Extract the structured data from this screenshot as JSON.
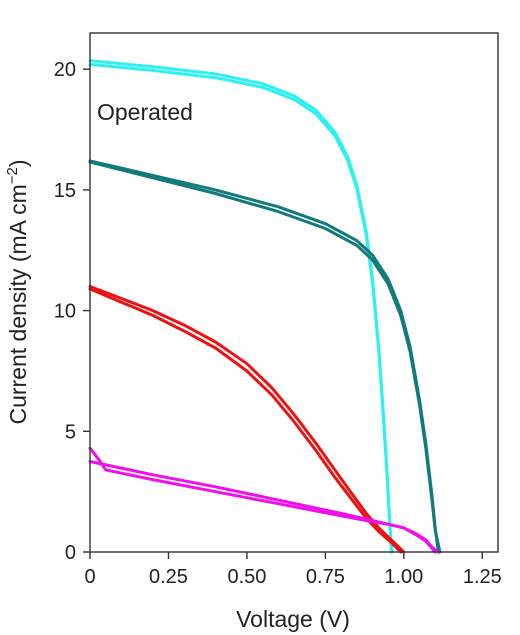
{
  "chart_data": {
    "type": "line",
    "xlabel": "Voltage (V)",
    "ylabel_main": "Current density (mA cm",
    "ylabel_exp": "−2",
    "ylabel_close": ")",
    "annotation": "Operated",
    "xlim": [
      0,
      1.3
    ],
    "ylim": [
      0,
      21.5
    ],
    "xticks": [
      0,
      0.25,
      0.5,
      0.75,
      1.0,
      1.25
    ],
    "xtick_labels": [
      "0",
      "0.25",
      "0.50",
      "0.75",
      "1.00",
      "1.25"
    ],
    "yticks": [
      0,
      5,
      10,
      15,
      20
    ],
    "ytick_labels": [
      "0",
      "5",
      "10",
      "15",
      "20"
    ],
    "grid": false,
    "series": [
      {
        "color": "#2EF0F0",
        "x": [
          0,
          0.2,
          0.4,
          0.55,
          0.65,
          0.72,
          0.78,
          0.82,
          0.85,
          0.88,
          0.9,
          0.92,
          0.935,
          0.945,
          0.955,
          0.96
        ],
        "y": [
          20.35,
          20.1,
          19.8,
          19.4,
          18.9,
          18.3,
          17.4,
          16.4,
          15.2,
          13.3,
          11.3,
          8.5,
          5.7,
          3.6,
          1.3,
          0
        ]
      },
      {
        "color": "#2EF0F0",
        "x": [
          0,
          0.2,
          0.4,
          0.55,
          0.65,
          0.72,
          0.78,
          0.82,
          0.85,
          0.88,
          0.9,
          0.92,
          0.935,
          0.945,
          0.955,
          0.962
        ],
        "y": [
          20.2,
          19.95,
          19.65,
          19.25,
          18.75,
          18.15,
          17.25,
          16.25,
          15.05,
          13.15,
          11.15,
          8.4,
          5.6,
          3.5,
          1.25,
          0
        ]
      },
      {
        "color": "#117B7B",
        "x": [
          0,
          0.2,
          0.4,
          0.6,
          0.75,
          0.85,
          0.9,
          0.95,
          0.99,
          1.02,
          1.05,
          1.07,
          1.09,
          1.1,
          1.11
        ],
        "y": [
          16.2,
          15.6,
          15.0,
          14.3,
          13.6,
          12.9,
          12.3,
          11.3,
          10.0,
          8.5,
          6.3,
          4.5,
          2.3,
          1.0,
          0
        ]
      },
      {
        "color": "#117B7B",
        "x": [
          0,
          0.2,
          0.4,
          0.6,
          0.75,
          0.85,
          0.9,
          0.95,
          0.99,
          1.02,
          1.05,
          1.07,
          1.09,
          1.1,
          1.115
        ],
        "y": [
          16.15,
          15.5,
          14.85,
          14.1,
          13.4,
          12.7,
          12.1,
          11.1,
          9.8,
          8.3,
          6.1,
          4.3,
          2.1,
          0.9,
          0
        ]
      },
      {
        "color": "#EE1111",
        "x": [
          0,
          0.1,
          0.2,
          0.3,
          0.4,
          0.5,
          0.58,
          0.65,
          0.72,
          0.78,
          0.83,
          0.88,
          0.92,
          0.96,
          1.0
        ],
        "y": [
          11.0,
          10.5,
          10.0,
          9.4,
          8.7,
          7.8,
          6.8,
          5.7,
          4.5,
          3.4,
          2.5,
          1.6,
          1.0,
          0.5,
          0
        ]
      },
      {
        "color": "#EE1111",
        "x": [
          0,
          0.1,
          0.2,
          0.3,
          0.4,
          0.5,
          0.58,
          0.65,
          0.72,
          0.78,
          0.83,
          0.88,
          0.92,
          0.96,
          0.99
        ],
        "y": [
          10.9,
          10.35,
          9.8,
          9.15,
          8.45,
          7.5,
          6.5,
          5.4,
          4.2,
          3.1,
          2.25,
          1.4,
          0.85,
          0.4,
          0
        ]
      },
      {
        "color": "#EE11EE",
        "x": [
          0,
          0.03,
          0.05,
          0.2,
          0.4,
          0.6,
          0.8,
          0.9,
          0.95,
          1.0,
          1.04,
          1.07,
          1.09,
          1.11
        ],
        "y": [
          4.3,
          3.8,
          3.4,
          3.0,
          2.5,
          2.0,
          1.5,
          1.25,
          1.15,
          1.0,
          0.75,
          0.5,
          0.2,
          0
        ]
      },
      {
        "color": "#EE11EE",
        "x": [
          0,
          0.2,
          0.4,
          0.6,
          0.8,
          0.9,
          0.95,
          1.0,
          1.04,
          1.07,
          1.09,
          1.1
        ],
        "y": [
          3.75,
          3.2,
          2.7,
          2.15,
          1.6,
          1.3,
          1.15,
          1.0,
          0.7,
          0.45,
          0.15,
          0
        ]
      }
    ]
  }
}
